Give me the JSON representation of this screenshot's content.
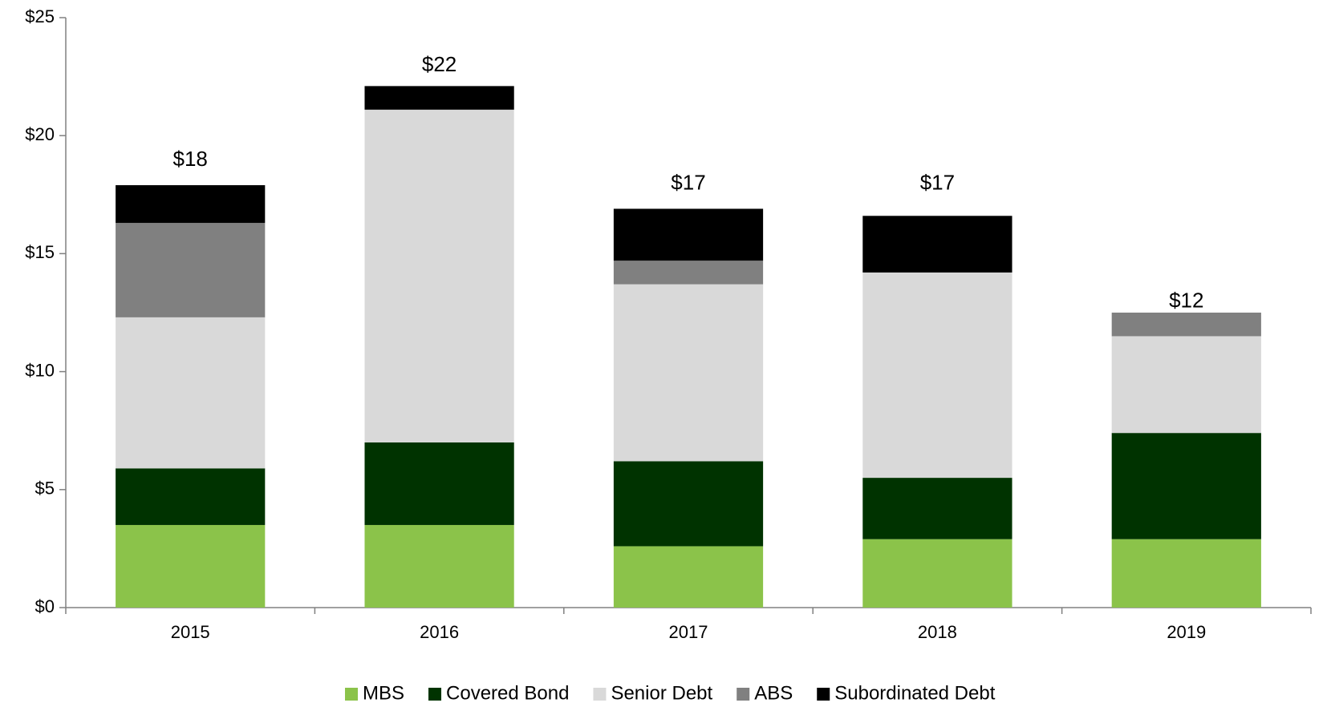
{
  "chart_data": {
    "type": "stacked_bar",
    "categories": [
      "2015",
      "2016",
      "2017",
      "2018",
      "2019"
    ],
    "series": [
      {
        "name": "MBS",
        "color": "#8bc34a",
        "values": [
          3.5,
          3.5,
          2.6,
          2.9,
          2.9
        ]
      },
      {
        "name": "Covered Bond",
        "color": "#003300",
        "values": [
          2.4,
          3.5,
          3.6,
          2.6,
          4.5
        ]
      },
      {
        "name": "Senior Debt",
        "color": "#d9d9d9",
        "values": [
          6.4,
          14.1,
          7.5,
          8.7,
          4.1
        ]
      },
      {
        "name": "ABS",
        "color": "#808080",
        "values": [
          4.0,
          0,
          1.0,
          0,
          1.0
        ]
      },
      {
        "name": "Subordinated Debt",
        "color": "#000000",
        "values": [
          1.6,
          1.0,
          2.2,
          2.4,
          0
        ]
      }
    ],
    "totals": [
      18,
      22,
      17,
      17,
      12
    ],
    "total_labels": [
      "$18",
      "$22",
      "$17",
      "$17",
      "$12"
    ],
    "ylim": [
      0,
      25
    ],
    "yticks": [
      {
        "value": 0,
        "label": "$0"
      },
      {
        "value": 5,
        "label": "$5"
      },
      {
        "value": 10,
        "label": "$10"
      },
      {
        "value": 15,
        "label": "$15"
      },
      {
        "value": 20,
        "label": "$20"
      },
      {
        "value": 25,
        "label": "$25"
      }
    ],
    "grid": false,
    "legend": "bottom"
  }
}
